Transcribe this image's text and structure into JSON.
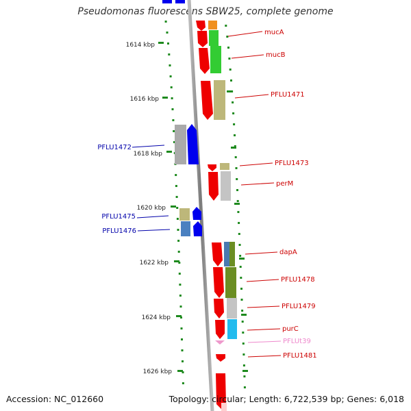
{
  "title": "Pseudomonas fluorescens SBW25, complete genome",
  "footer": {
    "accession": "Accession: NC_012660",
    "stats": "Topology: circular; Length: 6,722,539 bp; Genes: 6,018"
  },
  "colors": {
    "backbone": "#9a9a9a",
    "tick": "#1e8a1e",
    "forward_label": "#cc0000",
    "reverse_label": "#0000aa",
    "trna_label": "#ee88cc"
  },
  "scale_labels": [
    "1614 kbp",
    "1616 kbp",
    "1618 kbp",
    "1620 kbp",
    "1622 kbp",
    "1624 kbp",
    "1626 kbp"
  ],
  "gene_labels": [
    {
      "text": "mucA",
      "strand": "forward"
    },
    {
      "text": "mucB",
      "strand": "forward"
    },
    {
      "text": "PFLU1471",
      "strand": "forward"
    },
    {
      "text": "PFLU1472",
      "strand": "reverse"
    },
    {
      "text": "PFLU1473",
      "strand": "forward"
    },
    {
      "text": "perM",
      "strand": "forward"
    },
    {
      "text": "PFLU1475",
      "strand": "reverse"
    },
    {
      "text": "PFLU1476",
      "strand": "reverse"
    },
    {
      "text": "dapA",
      "strand": "forward"
    },
    {
      "text": "PFLU1478",
      "strand": "forward"
    },
    {
      "text": "PFLU1479",
      "strand": "forward"
    },
    {
      "text": "purC",
      "strand": "forward"
    },
    {
      "text": "PFLUt39",
      "strand": "trna"
    },
    {
      "text": "PFLU1481",
      "strand": "forward"
    }
  ]
}
